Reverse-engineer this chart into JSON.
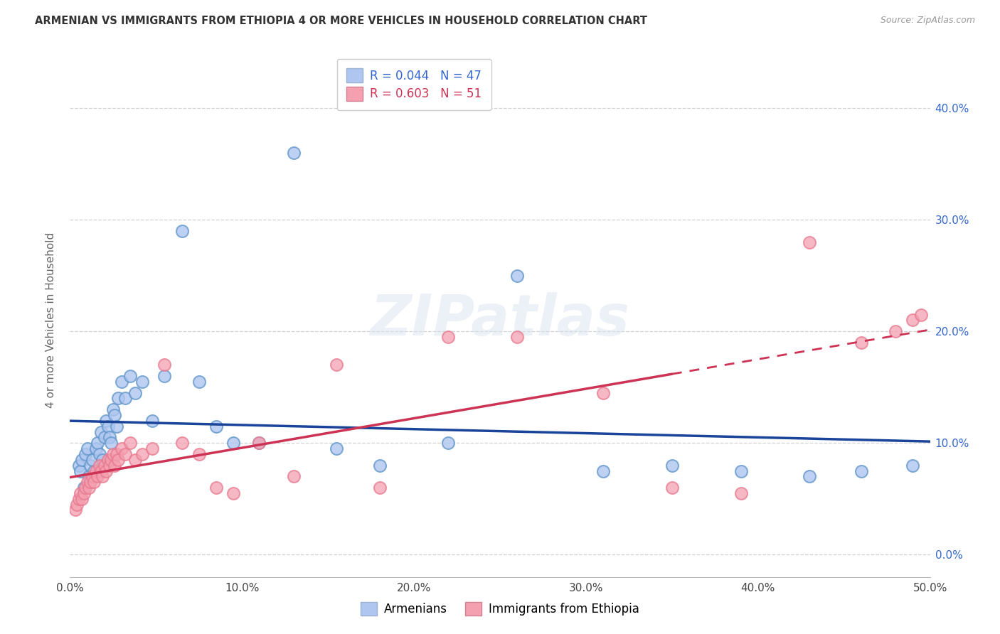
{
  "title": "ARMENIAN VS IMMIGRANTS FROM ETHIOPIA 4 OR MORE VEHICLES IN HOUSEHOLD CORRELATION CHART",
  "source": "Source: ZipAtlas.com",
  "ylabel": "4 or more Vehicles in Household",
  "xlim": [
    0.0,
    0.5
  ],
  "ylim": [
    -0.02,
    0.44
  ],
  "xtick_vals": [
    0.0,
    0.1,
    0.2,
    0.3,
    0.4,
    0.5
  ],
  "xticklabels": [
    "0.0%",
    "10.0%",
    "20.0%",
    "30.0%",
    "40.0%",
    "50.0%"
  ],
  "ytick_vals": [
    0.0,
    0.1,
    0.2,
    0.3,
    0.4
  ],
  "yticklabels_right": [
    "0.0%",
    "10.0%",
    "20.0%",
    "30.0%",
    "40.0%"
  ],
  "legend_label1": "R = 0.044   N = 47",
  "legend_label2": "R = 0.603   N = 51",
  "legend_color1": "#aec6f0",
  "legend_color2": "#f4a0b0",
  "blue_color": "#6699cc",
  "pink_color": "#e87a90",
  "trendline1_color": "#1a4499",
  "trendline2_color": "#cc3355",
  "background_color": "#ffffff",
  "watermark": "ZIPatlas",
  "armenians_x": [
    0.005,
    0.006,
    0.007,
    0.008,
    0.009,
    0.01,
    0.011,
    0.012,
    0.013,
    0.014,
    0.015,
    0.016,
    0.017,
    0.018,
    0.019,
    0.02,
    0.021,
    0.022,
    0.023,
    0.024,
    0.025,
    0.026,
    0.027,
    0.028,
    0.03,
    0.032,
    0.035,
    0.038,
    0.042,
    0.048,
    0.055,
    0.065,
    0.075,
    0.085,
    0.095,
    0.11,
    0.13,
    0.155,
    0.18,
    0.22,
    0.26,
    0.31,
    0.35,
    0.39,
    0.43,
    0.46,
    0.49
  ],
  "armenians_y": [
    0.08,
    0.075,
    0.085,
    0.06,
    0.09,
    0.095,
    0.07,
    0.08,
    0.085,
    0.075,
    0.095,
    0.1,
    0.09,
    0.11,
    0.085,
    0.105,
    0.12,
    0.115,
    0.105,
    0.1,
    0.13,
    0.125,
    0.115,
    0.14,
    0.155,
    0.14,
    0.16,
    0.145,
    0.155,
    0.12,
    0.16,
    0.29,
    0.155,
    0.115,
    0.1,
    0.1,
    0.36,
    0.095,
    0.08,
    0.1,
    0.25,
    0.075,
    0.08,
    0.075,
    0.07,
    0.075,
    0.08
  ],
  "ethiopia_x": [
    0.003,
    0.004,
    0.005,
    0.006,
    0.007,
    0.008,
    0.009,
    0.01,
    0.011,
    0.012,
    0.013,
    0.014,
    0.015,
    0.016,
    0.017,
    0.018,
    0.019,
    0.02,
    0.021,
    0.022,
    0.023,
    0.024,
    0.025,
    0.026,
    0.027,
    0.028,
    0.03,
    0.032,
    0.035,
    0.038,
    0.042,
    0.048,
    0.055,
    0.065,
    0.075,
    0.085,
    0.095,
    0.11,
    0.13,
    0.155,
    0.18,
    0.22,
    0.26,
    0.31,
    0.35,
    0.39,
    0.43,
    0.46,
    0.48,
    0.49,
    0.495
  ],
  "ethiopia_y": [
    0.04,
    0.045,
    0.05,
    0.055,
    0.05,
    0.055,
    0.06,
    0.065,
    0.06,
    0.065,
    0.07,
    0.065,
    0.075,
    0.07,
    0.08,
    0.075,
    0.07,
    0.08,
    0.075,
    0.085,
    0.08,
    0.085,
    0.09,
    0.08,
    0.09,
    0.085,
    0.095,
    0.09,
    0.1,
    0.085,
    0.09,
    0.095,
    0.17,
    0.1,
    0.09,
    0.06,
    0.055,
    0.1,
    0.07,
    0.17,
    0.06,
    0.195,
    0.195,
    0.145,
    0.06,
    0.055,
    0.28,
    0.19,
    0.2,
    0.21,
    0.215
  ]
}
